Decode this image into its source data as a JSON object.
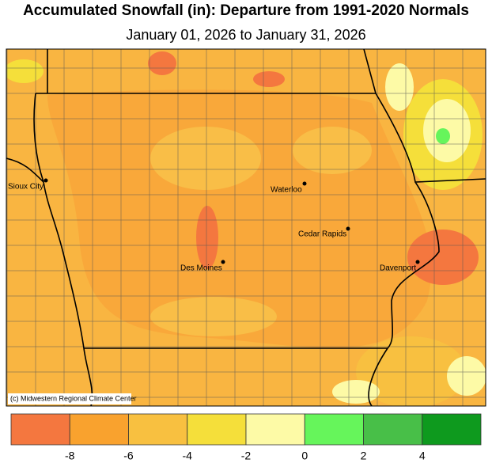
{
  "header": {
    "title": "Accumulated Snowfall (in): Departure from 1991-2020 Normals",
    "subtitle": "January 01, 2026 to January 31, 2026"
  },
  "map": {
    "cities": [
      {
        "name": "Sioux City"
      },
      {
        "name": "Waterloo"
      },
      {
        "name": "Cedar Rapids"
      },
      {
        "name": "Des Moines"
      },
      {
        "name": "Davenport"
      }
    ],
    "credit": "(c) Midwestern Regional Climate Center"
  },
  "legend": {
    "colors": [
      "#f4773f",
      "#f9a22e",
      "#f8c040",
      "#f5df3a",
      "#fdfaa6",
      "#66f55b",
      "#48bf48",
      "#0e9a1e"
    ],
    "ticks": [
      -8,
      -6,
      -4,
      -2,
      0,
      2,
      4
    ]
  }
}
